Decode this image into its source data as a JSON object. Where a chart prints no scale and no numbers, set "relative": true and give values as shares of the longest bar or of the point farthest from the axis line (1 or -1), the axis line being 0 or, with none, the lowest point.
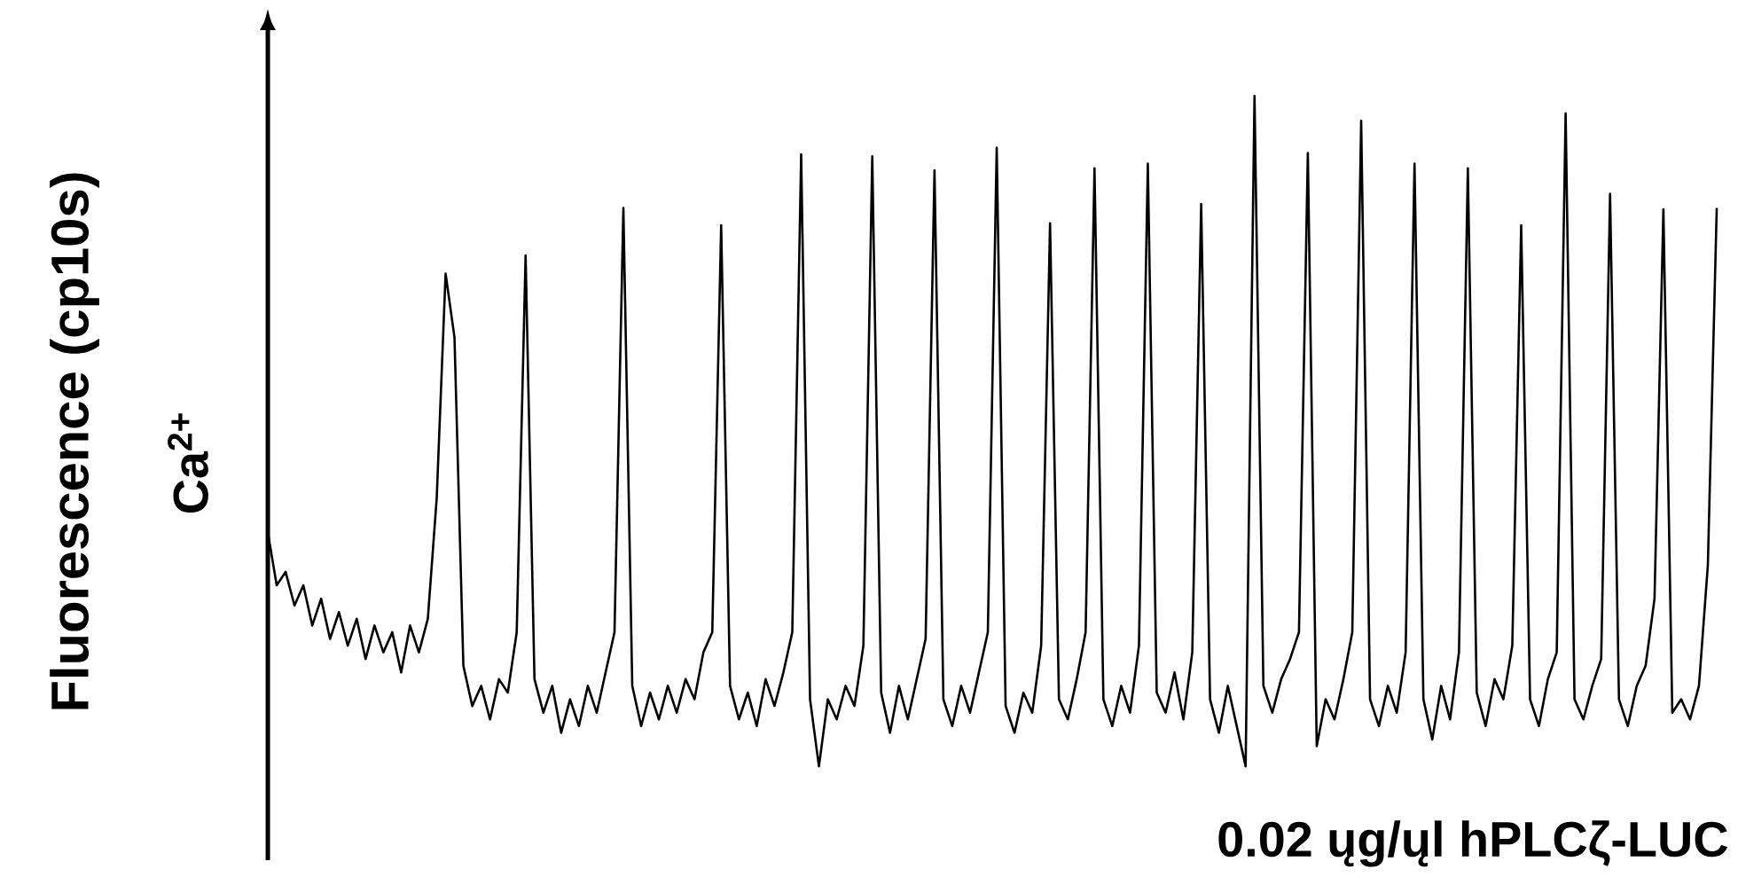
{
  "chart_data": {
    "type": "line",
    "relative": true,
    "color": "#000000",
    "ylabel": "Fluorescence (cp10s)",
    "annotations": [
      "Ca$^{2+}$",
      "0.02 ųg/ųl hPLCζ-LUC"
    ],
    "categories": [
      null,
      null,
      null,
      null,
      null,
      null,
      null,
      null,
      null,
      null,
      null,
      null,
      null,
      null,
      null,
      null,
      null,
      null,
      null,
      null,
      null,
      null,
      null,
      null,
      null,
      null,
      null,
      null,
      null,
      null,
      null,
      null,
      null,
      null,
      null,
      null,
      null,
      null,
      null,
      null,
      null,
      null,
      null,
      null,
      null,
      null,
      null,
      null,
      null,
      null,
      null,
      null,
      null,
      null,
      null,
      null,
      null,
      null,
      null,
      null,
      null,
      null,
      null,
      null,
      null,
      null,
      null,
      null,
      null,
      null,
      null,
      null,
      null,
      null,
      null,
      null,
      null,
      null,
      null,
      null,
      null,
      null,
      null,
      null,
      null,
      null,
      null,
      null,
      null,
      null,
      null,
      null,
      null,
      null,
      null,
      null,
      null,
      null,
      null,
      null,
      null,
      null,
      null,
      null,
      null,
      null,
      null,
      null,
      null,
      null,
      null,
      null,
      null,
      null,
      null,
      null,
      null,
      null,
      null,
      null,
      null,
      null,
      null,
      null,
      null,
      null,
      null,
      null,
      null,
      null,
      null,
      null,
      null,
      null,
      null,
      null,
      null,
      null,
      null,
      null,
      null,
      null,
      null,
      null,
      null,
      null,
      null,
      null,
      null,
      null,
      null,
      null,
      null,
      null,
      null,
      null,
      null,
      null,
      null,
      null,
      null,
      null,
      null,
      null
    ],
    "values": [
      0.349,
      0.27,
      0.29,
      0.24,
      0.27,
      0.21,
      0.25,
      0.19,
      0.23,
      0.18,
      0.22,
      0.16,
      0.21,
      0.17,
      0.2,
      0.14,
      0.21,
      0.17,
      0.22,
      0.4,
      0.735,
      0.64,
      0.15,
      0.09,
      0.12,
      0.07,
      0.13,
      0.11,
      0.2,
      0.762,
      0.13,
      0.08,
      0.12,
      0.05,
      0.1,
      0.06,
      0.12,
      0.08,
      0.14,
      0.2,
      0.833,
      0.12,
      0.06,
      0.11,
      0.07,
      0.12,
      0.08,
      0.13,
      0.1,
      0.17,
      0.2,
      0.807,
      0.12,
      0.07,
      0.11,
      0.06,
      0.13,
      0.09,
      0.14,
      0.2,
      0.913,
      0.1,
      0,
      0.1,
      0.07,
      0.12,
      0.09,
      0.18,
      0.91,
      0.11,
      0.05,
      0.12,
      0.07,
      0.13,
      0.19,
      0.889,
      0.1,
      0.06,
      0.12,
      0.08,
      0.14,
      0.2,
      0.923,
      0.09,
      0.05,
      0.11,
      0.08,
      0.18,
      0.81,
      0.1,
      0.07,
      0.13,
      0.2,
      0.892,
      0.1,
      0.06,
      0.12,
      0.08,
      0.18,
      0.899,
      0.11,
      0.08,
      0.14,
      0.07,
      0.17,
      0.839,
      0.1,
      0.05,
      0.12,
      0.06,
      0,
      1,
      0.12,
      0.08,
      0.13,
      0.16,
      0.2,
      0.915,
      0.03,
      0.1,
      0.07,
      0.13,
      0.2,
      0.963,
      0.1,
      0.06,
      0.12,
      0.08,
      0.17,
      0.899,
      0.1,
      0.04,
      0.12,
      0.07,
      0.17,
      0.892,
      0.11,
      0.06,
      0.13,
      0.1,
      0.18,
      0.807,
      0.1,
      0.06,
      0.13,
      0.17,
      0.974,
      0.1,
      0.07,
      0.12,
      0.16,
      0.854,
      0.1,
      0.06,
      0.12,
      0.15,
      0.25,
      0.831,
      0.08,
      0.1,
      0.07,
      0.12,
      0.3,
      0.833
    ]
  }
}
